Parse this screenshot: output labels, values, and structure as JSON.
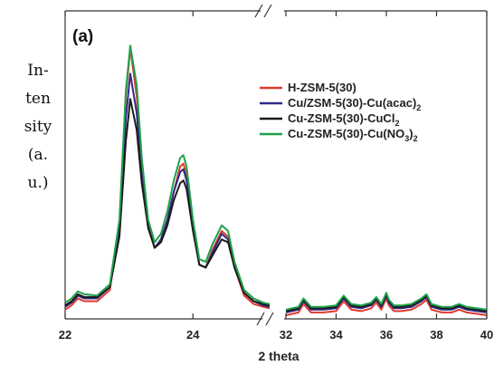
{
  "chart_data": {
    "type": "line",
    "panel_label": "(a)",
    "xlabel": "2 theta",
    "ylabel_lines": [
      "In-",
      "ten",
      "sity",
      "(a.",
      "u.)"
    ],
    "xlim_segments": [
      [
        22,
        25.2
      ],
      [
        32,
        40
      ]
    ],
    "x_ticks_left": [
      22,
      24
    ],
    "x_ticks_right": [
      32,
      34,
      36,
      38,
      40
    ],
    "y_ticks": [],
    "grid": false,
    "legend_position": "right-middle",
    "series": [
      {
        "name": "H-ZSM-5(30)",
        "name_main": "H-ZSM-5(30)",
        "name_sub": "",
        "name_tail": "",
        "color": "#e03a2e",
        "x": [
          22,
          22.1,
          22.2,
          22.3,
          22.5,
          22.7,
          22.85,
          22.95,
          23.02,
          23.12,
          23.2,
          23.3,
          23.4,
          23.5,
          23.6,
          23.7,
          23.8,
          23.85,
          23.9,
          24.0,
          24.1,
          24.2,
          24.3,
          24.45,
          24.55,
          24.65,
          24.8,
          24.95,
          25.1,
          25.2
        ],
        "y": [
          0.02,
          0.035,
          0.06,
          0.05,
          0.05,
          0.09,
          0.32,
          0.78,
          0.95,
          0.78,
          0.52,
          0.32,
          0.24,
          0.27,
          0.34,
          0.44,
          0.53,
          0.54,
          0.5,
          0.32,
          0.18,
          0.17,
          0.23,
          0.3,
          0.28,
          0.17,
          0.07,
          0.04,
          0.03,
          0.025
        ],
        "x2": [
          32,
          32.5,
          32.7,
          33.0,
          33.5,
          34.0,
          34.3,
          34.6,
          35.0,
          35.4,
          35.6,
          35.8,
          36.0,
          36.1,
          36.3,
          36.6,
          37.0,
          37.4,
          37.6,
          37.8,
          38.2,
          38.6,
          38.9,
          39.2,
          39.6,
          40
        ],
        "y2": [
          0.0,
          0.01,
          0.04,
          0.01,
          0.01,
          0.015,
          0.05,
          0.02,
          0.015,
          0.025,
          0.045,
          0.02,
          0.06,
          0.035,
          0.015,
          0.015,
          0.02,
          0.04,
          0.055,
          0.02,
          0.01,
          0.01,
          0.02,
          0.01,
          0.005,
          0.0
        ]
      },
      {
        "name": "Cu/ZSM-5(30)-Cu(acac)2",
        "name_main": "Cu/ZSM-5(30)-Cu(acac)",
        "name_sub": "2",
        "name_tail": "",
        "color": "#2e2a85",
        "x": [
          22,
          22.1,
          22.2,
          22.3,
          22.5,
          22.7,
          22.85,
          22.95,
          23.02,
          23.12,
          23.2,
          23.3,
          23.4,
          23.5,
          23.6,
          23.7,
          23.8,
          23.85,
          23.9,
          24.0,
          24.1,
          24.2,
          24.3,
          24.45,
          24.55,
          24.65,
          24.8,
          24.95,
          25.1,
          25.2
        ],
        "y": [
          0.03,
          0.045,
          0.07,
          0.06,
          0.06,
          0.1,
          0.3,
          0.7,
          0.86,
          0.72,
          0.5,
          0.32,
          0.24,
          0.27,
          0.34,
          0.44,
          0.51,
          0.52,
          0.48,
          0.31,
          0.18,
          0.17,
          0.22,
          0.29,
          0.27,
          0.17,
          0.08,
          0.05,
          0.035,
          0.03
        ],
        "x2": [
          32,
          32.5,
          32.7,
          33.0,
          33.5,
          34.0,
          34.3,
          34.6,
          35.0,
          35.4,
          35.6,
          35.8,
          36.0,
          36.1,
          36.3,
          36.6,
          37.0,
          37.4,
          37.6,
          37.8,
          38.2,
          38.6,
          38.9,
          39.2,
          39.6,
          40
        ],
        "y2": [
          0.01,
          0.02,
          0.05,
          0.02,
          0.02,
          0.025,
          0.06,
          0.03,
          0.025,
          0.035,
          0.055,
          0.03,
          0.07,
          0.045,
          0.025,
          0.025,
          0.03,
          0.05,
          0.065,
          0.03,
          0.02,
          0.02,
          0.03,
          0.02,
          0.015,
          0.01
        ]
      },
      {
        "name": "Cu-ZSM-5(30)-CuCl2",
        "name_main": "Cu-ZSM-5(30)-CuCl",
        "name_sub": "2",
        "name_tail": "",
        "color": "#1a1a1a",
        "x": [
          22,
          22.1,
          22.2,
          22.3,
          22.5,
          22.7,
          22.85,
          22.95,
          23.02,
          23.12,
          23.2,
          23.3,
          23.4,
          23.5,
          23.6,
          23.7,
          23.8,
          23.85,
          23.9,
          24.0,
          24.1,
          24.2,
          24.3,
          24.45,
          24.55,
          24.65,
          24.8,
          24.95,
          25.1,
          25.2
        ],
        "y": [
          0.035,
          0.05,
          0.075,
          0.065,
          0.065,
          0.1,
          0.28,
          0.62,
          0.77,
          0.66,
          0.47,
          0.31,
          0.24,
          0.26,
          0.32,
          0.41,
          0.47,
          0.48,
          0.45,
          0.3,
          0.18,
          0.17,
          0.21,
          0.27,
          0.26,
          0.17,
          0.08,
          0.05,
          0.04,
          0.035
        ],
        "x2": [
          32,
          32.5,
          32.7,
          33.0,
          33.5,
          34.0,
          34.3,
          34.6,
          35.0,
          35.4,
          35.6,
          35.8,
          36.0,
          36.1,
          36.3,
          36.6,
          37.0,
          37.4,
          37.6,
          37.8,
          38.2,
          38.6,
          38.9,
          39.2,
          39.6,
          40
        ],
        "y2": [
          0.015,
          0.025,
          0.055,
          0.025,
          0.025,
          0.03,
          0.065,
          0.035,
          0.03,
          0.04,
          0.06,
          0.035,
          0.075,
          0.05,
          0.03,
          0.03,
          0.035,
          0.055,
          0.07,
          0.035,
          0.025,
          0.025,
          0.035,
          0.025,
          0.02,
          0.015
        ]
      },
      {
        "name": "Cu-ZSM-5(30)-Cu(NO3)2",
        "name_main": "Cu-ZSM-5(30)-Cu(NO",
        "name_sub": "3",
        "name_tail": ")",
        "name_sub2": "2",
        "color": "#1fa24a",
        "x": [
          22,
          22.1,
          22.2,
          22.3,
          22.5,
          22.7,
          22.85,
          22.95,
          23.02,
          23.12,
          23.2,
          23.3,
          23.4,
          23.5,
          23.6,
          23.7,
          23.8,
          23.85,
          23.9,
          24.0,
          24.1,
          24.2,
          24.3,
          24.45,
          24.55,
          24.65,
          24.8,
          24.95,
          25.1,
          25.2
        ],
        "y": [
          0.045,
          0.06,
          0.085,
          0.075,
          0.07,
          0.11,
          0.34,
          0.8,
          0.96,
          0.82,
          0.56,
          0.34,
          0.26,
          0.29,
          0.37,
          0.48,
          0.56,
          0.57,
          0.53,
          0.34,
          0.2,
          0.19,
          0.25,
          0.32,
          0.3,
          0.19,
          0.09,
          0.06,
          0.045,
          0.04
        ],
        "x2": [
          32,
          32.5,
          32.7,
          33.0,
          33.5,
          34.0,
          34.3,
          34.6,
          35.0,
          35.4,
          35.6,
          35.8,
          36.0,
          36.1,
          36.3,
          36.6,
          37.0,
          37.4,
          37.6,
          37.8,
          38.2,
          38.6,
          38.9,
          39.2,
          39.6,
          40
        ],
        "y2": [
          0.02,
          0.03,
          0.06,
          0.03,
          0.03,
          0.035,
          0.07,
          0.04,
          0.035,
          0.045,
          0.065,
          0.04,
          0.08,
          0.055,
          0.035,
          0.035,
          0.04,
          0.06,
          0.075,
          0.04,
          0.03,
          0.03,
          0.04,
          0.03,
          0.025,
          0.02
        ]
      }
    ]
  }
}
